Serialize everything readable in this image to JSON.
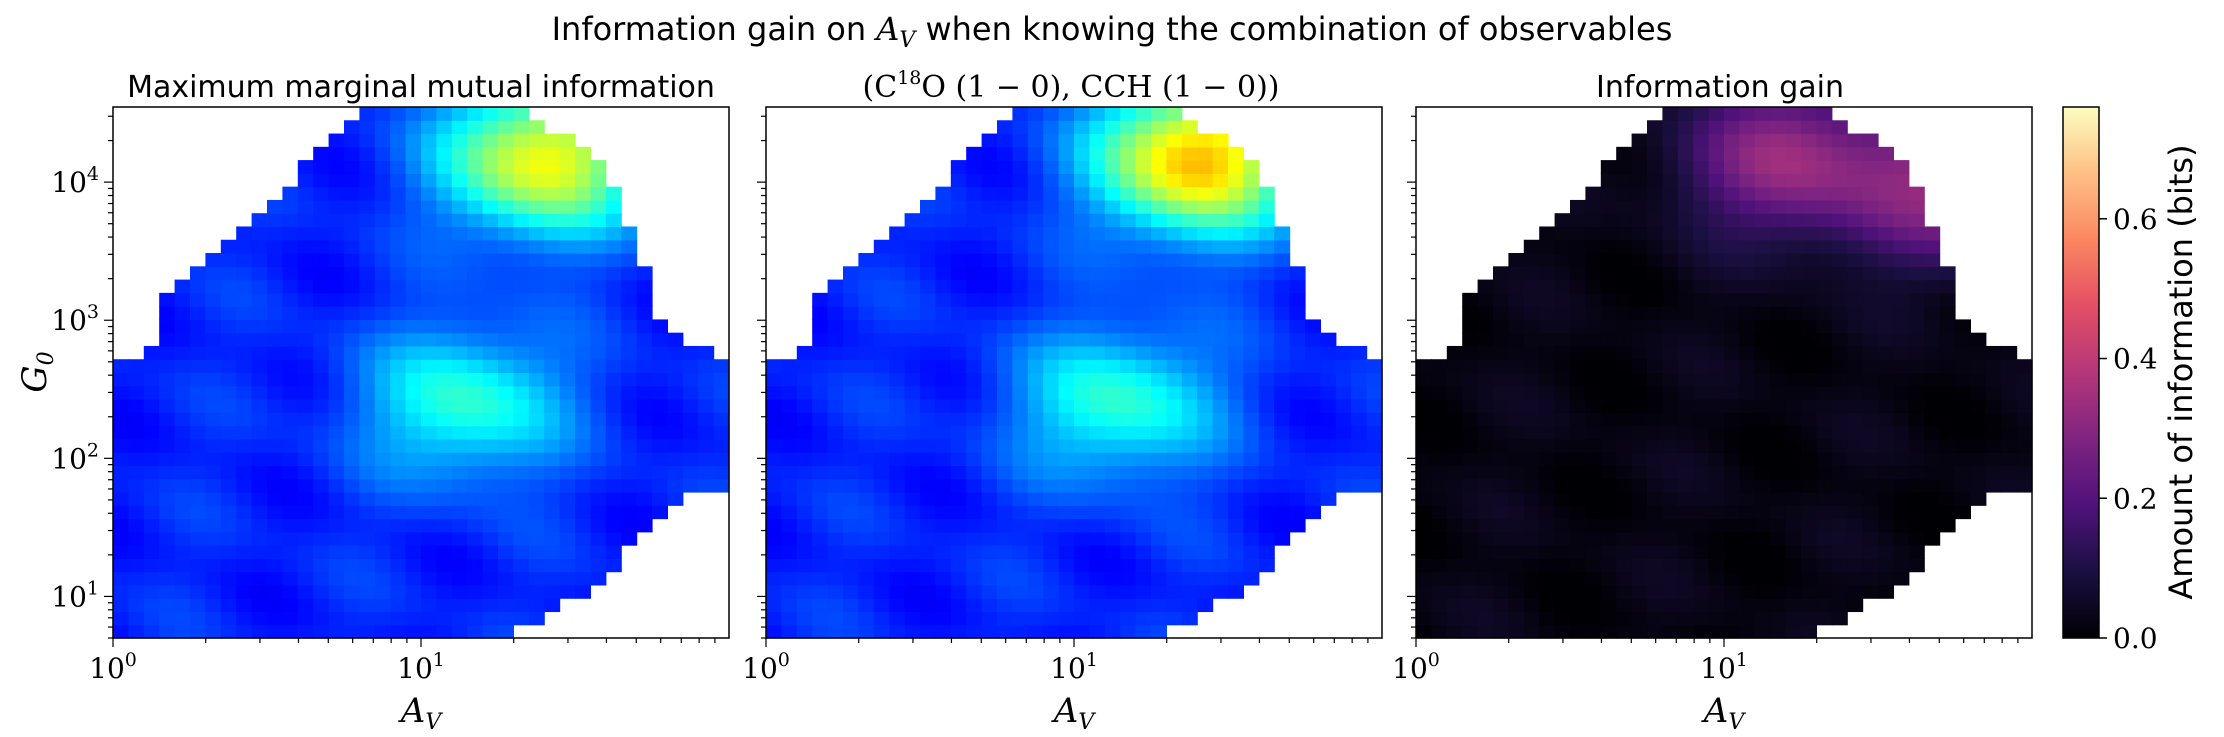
{
  "figure": {
    "suptitle_prefix": "Information gain on ",
    "suptitle_av": "A",
    "suptitle_av_sub": "V",
    "suptitle_suffix": " when knowing the combination of observables"
  },
  "colorbar": {
    "label": "Amount of information (bits)",
    "ticks": [
      "0.0",
      "0.2",
      "0.4",
      "0.6"
    ],
    "tick_values": [
      0.0,
      0.2,
      0.4,
      0.6
    ],
    "range": [
      0,
      0.76
    ],
    "cmap": "magma"
  },
  "chart_data": [
    {
      "type": "heatmap",
      "title": "Maximum marginal mutual information",
      "xlabel": "A_V",
      "ylabel": "G_0",
      "xscale": "log",
      "yscale": "log",
      "xlim": [
        1,
        100
      ],
      "ylim": [
        5,
        35000
      ],
      "xticks": [
        "10^0",
        "10^1"
      ],
      "yticks": [
        "10^1",
        "10^2",
        "10^3",
        "10^4"
      ],
      "cmap": "jet",
      "value_range": [
        0,
        0.76
      ],
      "hotspots": [
        {
          "Av": 25,
          "G0": 15000,
          "value": 0.46
        },
        {
          "Av": 14,
          "G0": 250,
          "value": 0.3
        }
      ],
      "background_value": 0.1
    },
    {
      "type": "heatmap",
      "title_lines": [
        "(C",
        "18",
        "O (1 − 0), CCH (1 − 0))"
      ],
      "xlabel": "A_V",
      "xscale": "log",
      "yscale": "log",
      "xlim": [
        1,
        100
      ],
      "ylim": [
        5,
        35000
      ],
      "xticks": [
        "10^0",
        "10^1"
      ],
      "cmap": "jet",
      "value_range": [
        0,
        0.76
      ],
      "hotspots": [
        {
          "Av": 25,
          "G0": 15000,
          "value": 0.52
        },
        {
          "Av": 14,
          "G0": 250,
          "value": 0.3
        }
      ],
      "background_value": 0.1
    },
    {
      "type": "heatmap",
      "title": "Information gain",
      "xlabel": "A_V",
      "xscale": "log",
      "yscale": "log",
      "xlim": [
        1,
        100
      ],
      "ylim": [
        5,
        35000
      ],
      "xticks": [
        "10^0",
        "10^1"
      ],
      "cmap": "magma",
      "value_range": [
        0,
        0.76
      ],
      "hotspots": [
        {
          "Av": 16,
          "G0": 15000,
          "value": 0.3
        },
        {
          "Av": 55,
          "G0": 9000,
          "value": 0.28
        }
      ],
      "background_value": 0.0
    }
  ]
}
